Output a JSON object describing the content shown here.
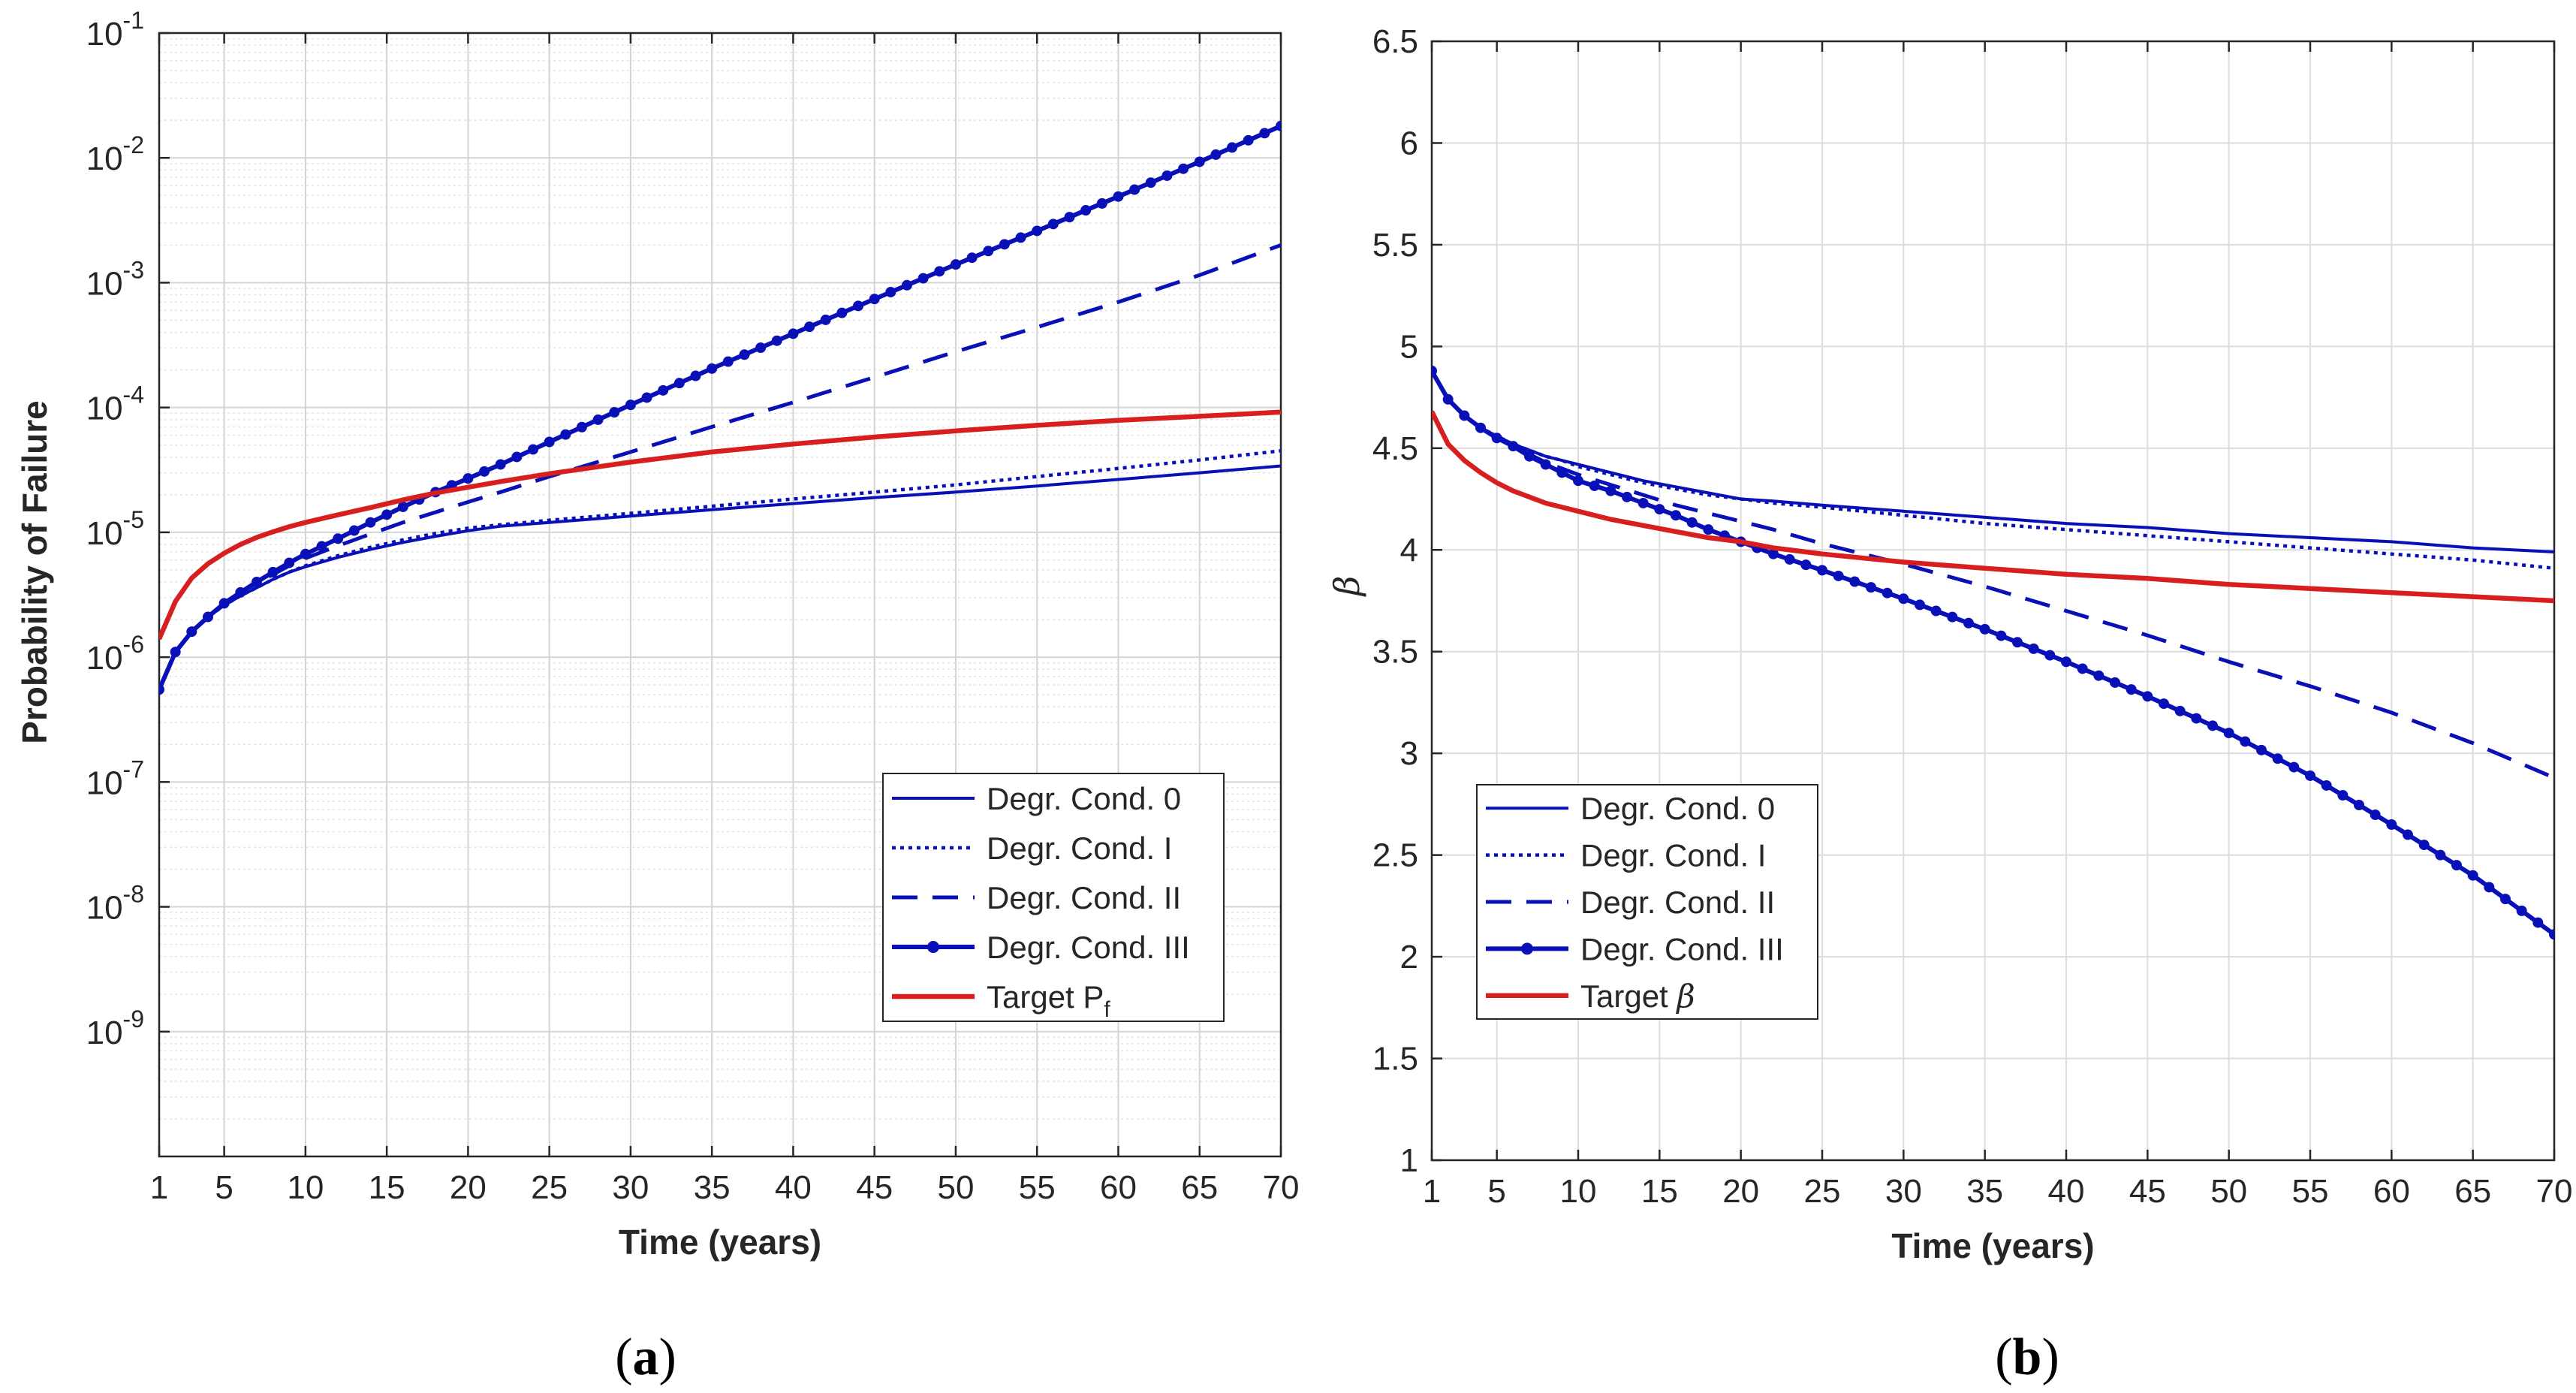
{
  "chart_data": [
    {
      "type": "line",
      "panel": "(a)",
      "panel_letter": "a",
      "xlabel": "Time (years)",
      "ylabel": "Probability of Failure",
      "yscale": "log",
      "xlim": [
        1,
        70
      ],
      "ylim_exp": [
        -10,
        -1
      ],
      "xticks": [
        1,
        5,
        10,
        15,
        20,
        25,
        30,
        35,
        40,
        45,
        50,
        55,
        60,
        65,
        70
      ],
      "ytick_exponents": [
        -9,
        -8,
        -7,
        -6,
        -5,
        -4,
        -3,
        -2,
        -1
      ],
      "ytick_base": "10",
      "grid": true,
      "minor_grid": true,
      "legend_position": "lower-right",
      "x": [
        1,
        2,
        3,
        4,
        5,
        6,
        7,
        8,
        9,
        10,
        12,
        14,
        16,
        18,
        20,
        22,
        25,
        30,
        35,
        40,
        45,
        50,
        55,
        60,
        65,
        70
      ],
      "series": [
        {
          "name": "Degr. Cond. 0",
          "style": "solid",
          "color": "#0a10b8",
          "values": [
            5.5e-07,
            1.1e-06,
            1.6e-06,
            2.1e-06,
            2.6e-06,
            3.1e-06,
            3.6e-06,
            4.2e-06,
            4.8e-06,
            5.3e-06,
            6.3e-06,
            7.3e-06,
            8.3e-06,
            9.3e-06,
            1.03e-05,
            1.12e-05,
            1.2e-05,
            1.35e-05,
            1.52e-05,
            1.7e-05,
            1.9e-05,
            2.1e-05,
            2.35e-05,
            2.65e-05,
            3e-05,
            3.4e-05
          ]
        },
        {
          "name": "Degr. Cond. I",
          "style": "dotted",
          "color": "#0a10b8",
          "values": [
            5.5e-07,
            1.1e-06,
            1.6e-06,
            2.1e-06,
            2.6e-06,
            3.1e-06,
            3.6e-06,
            4.2e-06,
            4.8e-06,
            5.4e-06,
            6.5e-06,
            7.6e-06,
            8.7e-06,
            9.8e-06,
            1.08e-05,
            1.15e-05,
            1.25e-05,
            1.42e-05,
            1.62e-05,
            1.85e-05,
            2.1e-05,
            2.4e-05,
            2.8e-05,
            3.25e-05,
            3.8e-05,
            4.5e-05
          ]
        },
        {
          "name": "Degr. Cond. II",
          "style": "dashed",
          "color": "#0a10b8",
          "values": [
            5.5e-07,
            1.1e-06,
            1.6e-06,
            2.1e-06,
            2.7e-06,
            3.3e-06,
            3.9e-06,
            4.6e-06,
            5.4e-06,
            6.2e-06,
            7.8e-06,
            9.7e-06,
            1.2e-05,
            1.45e-05,
            1.75e-05,
            2.1e-05,
            2.8e-05,
            4.4e-05,
            7e-05,
            0.00011,
            0.000175,
            0.00028,
            0.00044,
            0.0007,
            0.00115,
            0.002
          ]
        },
        {
          "name": "Degr. Cond. III",
          "style": "solid-marker",
          "color": "#0a10b8",
          "values": [
            5.5e-07,
            1.1e-06,
            1.6e-06,
            2.1e-06,
            2.7e-06,
            3.3e-06,
            4e-06,
            4.8e-06,
            5.7e-06,
            6.7e-06,
            8.9e-06,
            1.2e-05,
            1.6e-05,
            2.1e-05,
            2.7e-05,
            3.5e-05,
            5.3e-05,
            0.000105,
            0.000205,
            0.00039,
            0.00074,
            0.0014,
            0.0026,
            0.0049,
            0.0093,
            0.018
          ]
        },
        {
          "name": "Target P",
          "name_subscript": "f",
          "style": "solid-thick",
          "color": "#d71f1f",
          "values": [
            1.4e-06,
            2.8e-06,
            4.3e-06,
            5.6e-06,
            6.8e-06,
            8e-06,
            9.1e-06,
            1.01e-05,
            1.11e-05,
            1.2e-05,
            1.38e-05,
            1.58e-05,
            1.82e-05,
            2.07e-05,
            2.3e-05,
            2.55e-05,
            2.95e-05,
            3.65e-05,
            4.4e-05,
            5.1e-05,
            5.8e-05,
            6.5e-05,
            7.2e-05,
            7.9e-05,
            8.5e-05,
            9.2e-05
          ]
        }
      ]
    },
    {
      "type": "line",
      "panel": "(b)",
      "panel_letter": "b",
      "xlabel": "Time (years)",
      "ylabel": "β",
      "xlim": [
        1,
        70
      ],
      "ylim": [
        1,
        6.5
      ],
      "xticks": [
        1,
        5,
        10,
        15,
        20,
        25,
        30,
        35,
        40,
        45,
        50,
        55,
        60,
        65,
        70
      ],
      "yticks": [
        "1",
        "1.5",
        "2",
        "2.5",
        "3",
        "3.5",
        "4",
        "4.5",
        "5",
        "5.5",
        "6",
        "6.5"
      ],
      "grid": true,
      "legend_position": "lower-left",
      "x": [
        1,
        2,
        3,
        4,
        5,
        6,
        7,
        8,
        9,
        10,
        12,
        14,
        16,
        18,
        20,
        22,
        25,
        30,
        35,
        40,
        45,
        50,
        55,
        60,
        65,
        70
      ],
      "series": [
        {
          "name": "Degr. Cond. 0",
          "style": "solid",
          "color": "#0a10b8",
          "values": [
            4.88,
            4.74,
            4.66,
            4.6,
            4.56,
            4.52,
            4.49,
            4.46,
            4.44,
            4.42,
            4.38,
            4.34,
            4.31,
            4.28,
            4.25,
            4.24,
            4.22,
            4.19,
            4.16,
            4.13,
            4.11,
            4.08,
            4.06,
            4.04,
            4.01,
            3.99
          ]
        },
        {
          "name": "Degr. Cond. I",
          "style": "dotted",
          "color": "#0a10b8",
          "values": [
            4.88,
            4.74,
            4.66,
            4.6,
            4.56,
            4.52,
            4.49,
            4.46,
            4.44,
            4.41,
            4.37,
            4.33,
            4.3,
            4.27,
            4.25,
            4.23,
            4.21,
            4.17,
            4.13,
            4.1,
            4.07,
            4.04,
            4.01,
            3.98,
            3.95,
            3.91
          ]
        },
        {
          "name": "Degr. Cond. II",
          "style": "dashed",
          "color": "#0a10b8",
          "values": [
            4.88,
            4.74,
            4.66,
            4.6,
            4.55,
            4.51,
            4.47,
            4.43,
            4.4,
            4.37,
            4.32,
            4.27,
            4.22,
            4.18,
            4.14,
            4.1,
            4.03,
            3.93,
            3.82,
            3.7,
            3.58,
            3.45,
            3.33,
            3.2,
            3.05,
            2.88
          ]
        },
        {
          "name": "Degr. Cond. III",
          "style": "solid-marker",
          "color": "#0a10b8",
          "values": [
            4.88,
            4.74,
            4.66,
            4.6,
            4.55,
            4.51,
            4.46,
            4.42,
            4.38,
            4.34,
            4.29,
            4.23,
            4.17,
            4.1,
            4.04,
            3.98,
            3.9,
            3.76,
            3.61,
            3.45,
            3.28,
            3.1,
            2.89,
            2.65,
            2.4,
            2.11
          ]
        },
        {
          "name": "Target ",
          "name_symbol": "β",
          "style": "solid-thick",
          "color": "#d71f1f",
          "values": [
            4.68,
            4.52,
            4.44,
            4.38,
            4.33,
            4.29,
            4.26,
            4.23,
            4.21,
            4.19,
            4.15,
            4.12,
            4.09,
            4.06,
            4.04,
            4.01,
            3.98,
            3.94,
            3.91,
            3.88,
            3.86,
            3.83,
            3.81,
            3.79,
            3.77,
            3.75
          ]
        }
      ]
    }
  ]
}
